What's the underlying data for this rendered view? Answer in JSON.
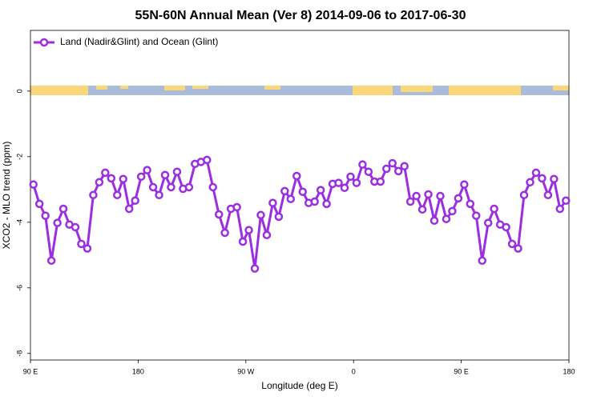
{
  "chart_data": {
    "type": "line",
    "title": "55N-60N Annual Mean (Ver 8)   2014-09-06 to 2017-06-30",
    "x_label": "Longitude (deg E)",
    "y_label": "XCO2 - MLO trend (ppm)",
    "legend": "top-left",
    "x": [
      92.5,
      97.5,
      102.5,
      107.5,
      112.5,
      117.5,
      122.5,
      127.5,
      132.5,
      137.5,
      142.5,
      147.5,
      152.5,
      157.5,
      162.5,
      167.5,
      172.5,
      177.5,
      182.5,
      187.5,
      192.5,
      197.5,
      202.5,
      207.5,
      212.5,
      217.5,
      222.5,
      227.5,
      232.5,
      237.5,
      242.5,
      247.5,
      252.5,
      257.5,
      262.5,
      267.5,
      272.5,
      277.5,
      282.5,
      287.5,
      292.5,
      297.5,
      302.5,
      307.5,
      312.5,
      317.5,
      322.5,
      327.5,
      332.5,
      337.5,
      342.5,
      347.5,
      352.5,
      357.5,
      362.5,
      367.5,
      372.5,
      377.5,
      382.5,
      387.5,
      392.5,
      397.5,
      402.5,
      407.5,
      412.5,
      417.5,
      422.5,
      427.5,
      432.5,
      437.5,
      442.5,
      447.5,
      452.5,
      457.5,
      462.5,
      467.5,
      472.5,
      477.5,
      482.5,
      487.5,
      492.5,
      497.5,
      502.5,
      507.5,
      512.5,
      517.5,
      522.5,
      527.5,
      532.5,
      537.5
    ],
    "series": [
      {
        "name": "Land (Nadir&Glint) and Ocean (Glint)",
        "color": "#9b2ee0",
        "values": [
          -2.85,
          -3.44,
          -3.8,
          -5.17,
          -4.02,
          -3.59,
          -4.07,
          -4.15,
          -4.66,
          -4.8,
          -3.17,
          -2.78,
          -2.49,
          -2.66,
          -3.17,
          -2.68,
          -3.59,
          -3.34,
          -2.61,
          -2.41,
          -2.93,
          -3.17,
          -2.56,
          -2.93,
          -2.46,
          -2.98,
          -2.93,
          -2.22,
          -2.16,
          -2.1,
          -2.93,
          -3.76,
          -4.32,
          -3.59,
          -3.54,
          -4.59,
          -4.24,
          -5.41,
          -3.78,
          -4.39,
          -3.41,
          -3.83,
          -3.05,
          -3.29,
          -2.59,
          -3.07,
          -3.41,
          -3.37,
          -3.02,
          -3.44,
          -2.83,
          -2.8,
          -2.95,
          -2.61,
          -2.8,
          -2.24,
          -2.46,
          -2.76,
          -2.76,
          -2.37,
          -2.2,
          -2.44,
          -2.29,
          -3.37,
          -3.2,
          -3.61,
          -3.15,
          -3.95,
          -3.2,
          -3.9,
          -3.66,
          -3.27,
          -2.85,
          -3.44,
          -3.8,
          -5.17,
          -4.02,
          -3.59,
          -4.07,
          -4.15,
          -4.66,
          -4.8,
          -3.17,
          -2.78,
          -2.49,
          -2.66,
          -3.17,
          -2.68,
          -3.59,
          -3.34
        ]
      }
    ],
    "xlim": [
      90,
      540
    ],
    "xticks": [
      {
        "value": 90,
        "label": "90 E"
      },
      180,
      {
        "value": 270,
        "label": "90 W"
      },
      {
        "value": 360,
        "label": "0"
      },
      {
        "value": 450,
        "label": "90 E"
      },
      {
        "value": 540,
        "label": "180"
      }
    ],
    "ylim": [
      1.85,
      -8.2
    ],
    "yticks": [
      0,
      -2,
      -4,
      -6,
      -8
    ]
  }
}
